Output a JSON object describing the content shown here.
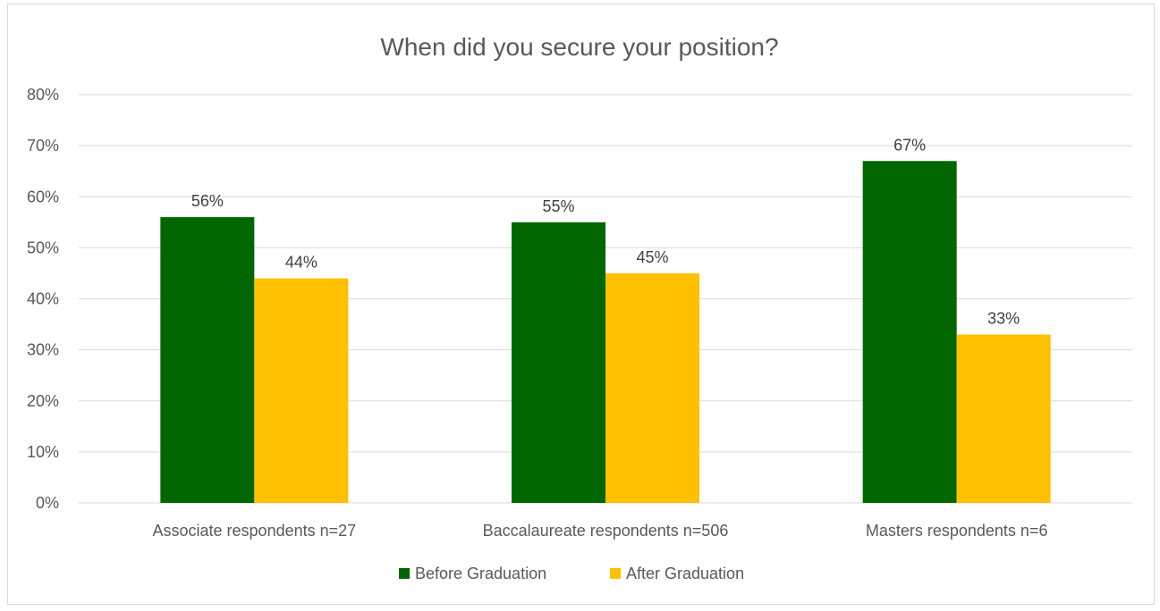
{
  "chart_data": {
    "type": "bar",
    "title": "When did you secure your position?",
    "xlabel": "",
    "ylabel": "",
    "categories": [
      "Associate respondents n=27",
      "Baccalaureate respondents n=506",
      "Masters respondents n=6"
    ],
    "series": [
      {
        "name": "Before Graduation",
        "color": "#006600",
        "values": [
          56,
          55,
          67
        ],
        "labels": [
          "56%",
          "55%",
          "67%"
        ]
      },
      {
        "name": "After Graduation",
        "color": "#ffc000",
        "values": [
          44,
          45,
          33
        ],
        "labels": [
          "44%",
          "45%",
          "33%"
        ]
      }
    ],
    "ylim": [
      0,
      80
    ],
    "yticks": [
      0,
      10,
      20,
      30,
      40,
      50,
      60,
      70,
      80
    ],
    "ytick_labels": [
      "0%",
      "10%",
      "20%",
      "30%",
      "40%",
      "50%",
      "60%",
      "70%",
      "80%"
    ],
    "grid": true,
    "legend_position": "bottom"
  }
}
